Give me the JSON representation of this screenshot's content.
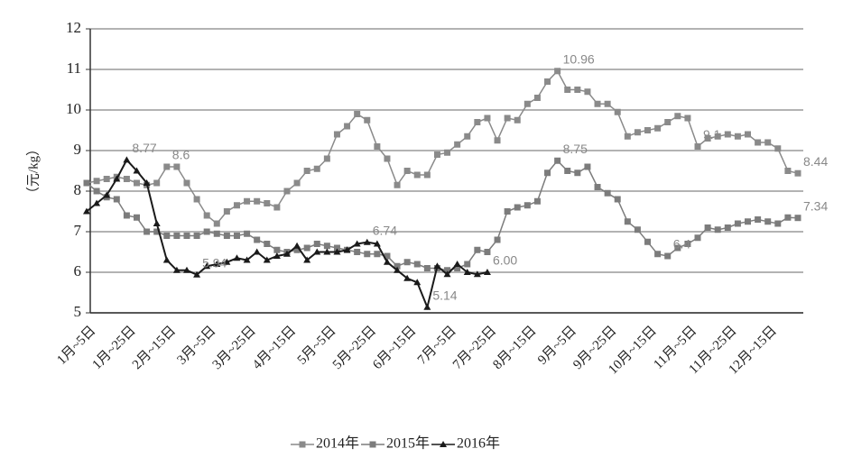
{
  "chart_data": {
    "type": "line",
    "y_label": "（元/kg）",
    "categories": [
      "1月~5日",
      null,
      null,
      null,
      "1月~25日",
      null,
      null,
      null,
      "2月~15日",
      null,
      null,
      null,
      "3月~5日",
      null,
      null,
      null,
      "3月~25日",
      null,
      null,
      null,
      "4月~15日",
      null,
      null,
      null,
      "5月~5日",
      null,
      null,
      null,
      "5月~25日",
      null,
      null,
      null,
      "6月~15日",
      null,
      null,
      null,
      "7月~5日",
      null,
      null,
      null,
      "7月~25日",
      null,
      null,
      null,
      "8月~15日",
      null,
      null,
      null,
      "9月~5日",
      null,
      null,
      null,
      "9月~25日",
      null,
      null,
      null,
      "10月~15日",
      null,
      null,
      null,
      "11月~5日",
      null,
      null,
      null,
      "11月~25日",
      null,
      null,
      null,
      "12月~15日",
      null,
      null,
      null
    ],
    "ylim": [
      5,
      12
    ],
    "yticks": [
      5,
      6,
      7,
      8,
      9,
      10,
      11,
      12
    ],
    "grid": true,
    "legend": "bottom",
    "series": [
      {
        "name": "2014年",
        "color": "#8a8a8a",
        "marker": "square",
        "values": [
          8.2,
          8.25,
          8.3,
          8.35,
          8.3,
          8.2,
          8.15,
          8.2,
          8.6,
          8.6,
          8.2,
          7.8,
          7.4,
          7.2,
          7.5,
          7.65,
          7.75,
          7.75,
          7.7,
          7.6,
          8.0,
          8.2,
          8.5,
          8.55,
          8.8,
          9.4,
          9.6,
          9.9,
          9.75,
          9.1,
          8.8,
          8.15,
          8.5,
          8.4,
          8.4,
          8.9,
          8.95,
          9.15,
          9.35,
          9.7,
          9.8,
          9.25,
          9.8,
          9.75,
          10.15,
          10.3,
          10.7,
          10.96,
          10.5,
          10.5,
          10.45,
          10.15,
          10.15,
          9.95,
          9.35,
          9.45,
          9.5,
          9.55,
          9.7,
          9.85,
          9.8,
          9.1,
          9.3,
          9.35,
          9.4,
          9.35,
          9.4,
          9.2,
          9.2,
          9.05,
          8.5,
          8.44
        ],
        "value_labels": [
          null,
          null,
          null,
          null,
          null,
          null,
          null,
          null,
          "8.6",
          null,
          null,
          null,
          null,
          null,
          null,
          null,
          null,
          null,
          null,
          null,
          null,
          null,
          null,
          null,
          null,
          null,
          null,
          null,
          null,
          null,
          null,
          null,
          null,
          null,
          null,
          null,
          null,
          null,
          null,
          null,
          null,
          null,
          null,
          null,
          null,
          null,
          null,
          "10.96",
          null,
          null,
          null,
          null,
          null,
          null,
          null,
          null,
          null,
          null,
          null,
          null,
          null,
          "9.1",
          null,
          null,
          null,
          null,
          null,
          null,
          null,
          null,
          null,
          "8.44"
        ]
      },
      {
        "name": "2015年",
        "color": "#7c7c7c",
        "marker": "square",
        "values": [
          8.2,
          8.0,
          7.85,
          7.8,
          7.4,
          7.35,
          7.0,
          7.0,
          6.9,
          6.9,
          6.9,
          6.9,
          7.0,
          6.95,
          6.9,
          6.9,
          6.95,
          6.8,
          6.7,
          6.55,
          6.5,
          6.55,
          6.6,
          6.7,
          6.65,
          6.6,
          6.55,
          6.5,
          6.45,
          6.45,
          6.4,
          6.15,
          6.25,
          6.2,
          6.1,
          6.1,
          6.05,
          6.1,
          6.2,
          6.55,
          6.5,
          6.8,
          7.5,
          7.6,
          7.65,
          7.75,
          8.45,
          8.75,
          8.5,
          8.45,
          8.6,
          8.1,
          7.95,
          7.8,
          7.25,
          7.05,
          6.75,
          6.45,
          6.4,
          6.6,
          6.7,
          6.85,
          7.1,
          7.05,
          7.1,
          7.2,
          7.25,
          7.3,
          7.25,
          7.2,
          7.35,
          7.34
        ],
        "value_labels": [
          null,
          null,
          null,
          null,
          null,
          null,
          null,
          null,
          null,
          null,
          null,
          null,
          null,
          null,
          null,
          null,
          null,
          null,
          null,
          null,
          null,
          null,
          null,
          null,
          null,
          null,
          null,
          null,
          null,
          null,
          null,
          null,
          null,
          null,
          null,
          null,
          null,
          null,
          null,
          null,
          null,
          null,
          null,
          null,
          null,
          null,
          null,
          "8.75",
          null,
          null,
          null,
          null,
          null,
          null,
          null,
          null,
          null,
          null,
          "6.4",
          null,
          null,
          null,
          null,
          null,
          null,
          null,
          null,
          null,
          null,
          null,
          null,
          "7.34"
        ]
      },
      {
        "name": "2016年",
        "color": "#1a1a1a",
        "marker": "triangle",
        "values": [
          7.5,
          7.7,
          7.9,
          8.3,
          8.77,
          8.5,
          8.2,
          7.2,
          6.3,
          6.05,
          6.05,
          5.94,
          6.15,
          6.2,
          6.25,
          6.35,
          6.3,
          6.5,
          6.3,
          6.4,
          6.45,
          6.65,
          6.3,
          6.5,
          6.5,
          6.5,
          6.55,
          6.7,
          6.74,
          6.7,
          6.25,
          6.05,
          5.85,
          5.75,
          5.14,
          6.15,
          5.95,
          6.2,
          6.0,
          5.95,
          6.0,
          null,
          null,
          null,
          null,
          null,
          null,
          null,
          null,
          null,
          null,
          null,
          null,
          null,
          null,
          null,
          null,
          null,
          null,
          null,
          null,
          null,
          null,
          null,
          null,
          null,
          null,
          null,
          null,
          null,
          null,
          null
        ],
        "value_labels": [
          null,
          null,
          null,
          null,
          "8.77",
          null,
          null,
          null,
          null,
          null,
          null,
          "5.94",
          null,
          null,
          null,
          null,
          null,
          null,
          null,
          null,
          null,
          null,
          null,
          null,
          null,
          null,
          null,
          null,
          "6.74",
          null,
          null,
          null,
          null,
          null,
          "5.14",
          null,
          null,
          null,
          null,
          null,
          "6.00",
          null,
          null,
          null,
          null,
          null,
          null,
          null,
          null,
          null,
          null,
          null,
          null,
          null,
          null,
          null,
          null,
          null,
          null,
          null,
          null,
          null,
          null,
          null,
          null,
          null,
          null,
          null,
          null,
          null,
          null,
          null
        ]
      }
    ]
  }
}
